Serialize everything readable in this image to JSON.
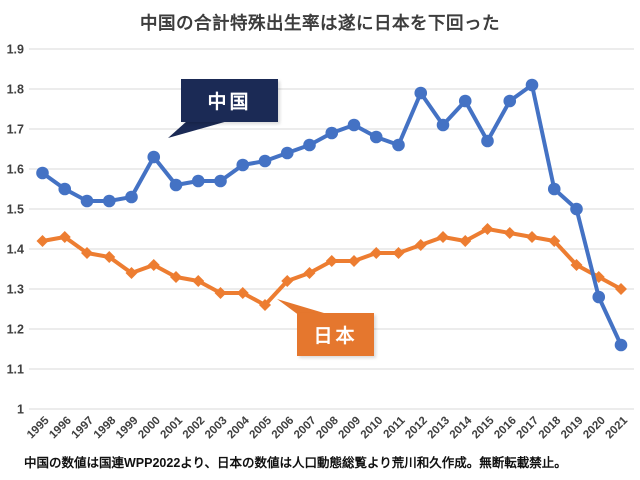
{
  "title": "中国の合計特殊出生率は遂に日本を下回った",
  "caption": "中国の数値は国連WPP2022より、日本の数値は人口動態総覧より荒川和久作成。無断転載禁止。",
  "colors": {
    "china_line": "#4472c4",
    "japan_line": "#ed7d31",
    "china_callout_bg": "#1b2a55",
    "japan_callout_bg": "#e5772e",
    "gridline": "#d9d9d9",
    "axis_text": "#3f3f3f",
    "title_text": "#3d3d3d",
    "caption_text": "#111111"
  },
  "chart_data": {
    "type": "line",
    "title": "中国の合計特殊出生率は遂に日本を下回った",
    "xlabel": "",
    "ylabel": "",
    "ylim": [
      1.0,
      1.9
    ],
    "ytick_labels": [
      "1.9",
      "1.8",
      "1.7",
      "1.6",
      "1.5",
      "1.4",
      "1.3",
      "1.2",
      "1.1",
      "1"
    ],
    "grid": true,
    "legend_position": "callout-labels-on-chart",
    "x": [
      1995,
      1996,
      1997,
      1998,
      1999,
      2000,
      2001,
      2002,
      2003,
      2004,
      2005,
      2006,
      2007,
      2008,
      2009,
      2010,
      2011,
      2012,
      2013,
      2014,
      2015,
      2016,
      2017,
      2018,
      2019,
      2020,
      2021
    ],
    "series": [
      {
        "id": "china",
        "name": "中国",
        "marker": "circle",
        "color": "#4472c4",
        "values": [
          1.59,
          1.55,
          1.52,
          1.52,
          1.53,
          1.63,
          1.56,
          1.57,
          1.57,
          1.61,
          1.62,
          1.64,
          1.66,
          1.69,
          1.71,
          1.68,
          1.66,
          1.79,
          1.71,
          1.77,
          1.67,
          1.77,
          1.81,
          1.55,
          1.5,
          1.28,
          1.16
        ]
      },
      {
        "id": "japan",
        "name": "日本",
        "marker": "diamond",
        "color": "#ed7d31",
        "values": [
          1.42,
          1.43,
          1.39,
          1.38,
          1.34,
          1.36,
          1.33,
          1.32,
          1.29,
          1.29,
          1.26,
          1.32,
          1.34,
          1.37,
          1.37,
          1.39,
          1.39,
          1.41,
          1.43,
          1.42,
          1.45,
          1.44,
          1.43,
          1.42,
          1.36,
          1.33,
          1.3
        ]
      }
    ]
  }
}
